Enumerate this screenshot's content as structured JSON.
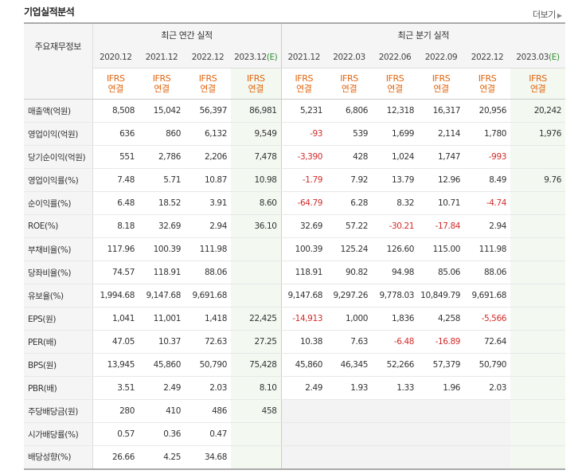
{
  "title": "기업실적분석",
  "more": "더보기",
  "header": {
    "corner": "주요재무정보",
    "annual_label": "최근 연간 실적",
    "quarter_label": "최근 분기 실적",
    "periods": [
      "2020.12",
      "2021.12",
      "2022.12",
      "2023.12(E)",
      "2021.12",
      "2022.03",
      "2022.06",
      "2022.09",
      "2022.12",
      "2023.03(E)"
    ],
    "basis_top": "IFRS",
    "basis_bottom": "연결"
  },
  "rows": [
    {
      "label": "매출액(억원)",
      "values": [
        "8,508",
        "15,042",
        "56,397",
        "86,981",
        "5,231",
        "6,806",
        "12,318",
        "16,317",
        "20,956",
        "20,242"
      ],
      "group_start": true
    },
    {
      "label": "영업이익(억원)",
      "values": [
        "636",
        "860",
        "6,132",
        "9,549",
        "-93",
        "539",
        "1,699",
        "2,114",
        "1,780",
        "1,976"
      ]
    },
    {
      "label": "당기순이익(억원)",
      "values": [
        "551",
        "2,786",
        "2,206",
        "7,478",
        "-3,390",
        "428",
        "1,024",
        "1,747",
        "-993",
        ""
      ]
    },
    {
      "label": "영업이익률(%)",
      "values": [
        "7.48",
        "5.71",
        "10.87",
        "10.98",
        "-1.79",
        "7.92",
        "13.79",
        "12.96",
        "8.49",
        "9.76"
      ],
      "group_start": true
    },
    {
      "label": "순이익률(%)",
      "values": [
        "6.48",
        "18.52",
        "3.91",
        "8.60",
        "-64.79",
        "6.28",
        "8.32",
        "10.71",
        "-4.74",
        ""
      ]
    },
    {
      "label": "ROE(%)",
      "values": [
        "8.18",
        "32.69",
        "2.94",
        "36.10",
        "32.69",
        "57.22",
        "-30.21",
        "-17.84",
        "2.94",
        ""
      ]
    },
    {
      "label": "부채비율(%)",
      "values": [
        "117.96",
        "100.39",
        "111.98",
        "",
        "100.39",
        "125.24",
        "126.60",
        "115.00",
        "111.98",
        ""
      ],
      "group_start": true
    },
    {
      "label": "당좌비율(%)",
      "values": [
        "74.57",
        "118.91",
        "88.06",
        "",
        "118.91",
        "90.82",
        "94.98",
        "85.06",
        "88.06",
        ""
      ]
    },
    {
      "label": "유보율(%)",
      "values": [
        "1,994.68",
        "9,147.68",
        "9,691.68",
        "",
        "9,147.68",
        "9,297.26",
        "9,778.03",
        "10,849.79",
        "9,691.68",
        ""
      ]
    },
    {
      "label": "EPS(원)",
      "values": [
        "1,041",
        "11,001",
        "1,418",
        "22,425",
        "-14,913",
        "1,000",
        "1,836",
        "4,258",
        "-5,566",
        ""
      ],
      "group_start": true
    },
    {
      "label": "PER(배)",
      "values": [
        "47.05",
        "10.37",
        "72.63",
        "27.25",
        "10.38",
        "7.63",
        "-6.48",
        "-16.89",
        "72.64",
        ""
      ]
    },
    {
      "label": "BPS(원)",
      "values": [
        "13,945",
        "45,860",
        "50,790",
        "75,428",
        "45,860",
        "46,345",
        "52,266",
        "57,379",
        "50,790",
        ""
      ]
    },
    {
      "label": "PBR(배)",
      "values": [
        "3.51",
        "2.49",
        "2.03",
        "8.10",
        "2.49",
        "1.93",
        "1.33",
        "1.96",
        "2.03",
        ""
      ]
    },
    {
      "label": "주당배당금(원)",
      "values": [
        "280",
        "410",
        "486",
        "458",
        "",
        "",
        "",
        "",
        "",
        ""
      ],
      "group_start": true
    },
    {
      "label": "시가배당률(%)",
      "values": [
        "0.57",
        "0.36",
        "0.47",
        "",
        "",
        "",
        "",
        "",
        "",
        ""
      ]
    },
    {
      "label": "배당성향(%)",
      "values": [
        "26.66",
        "4.25",
        "34.68",
        "",
        "",
        "",
        "",
        "",
        "",
        ""
      ]
    }
  ],
  "colors": {
    "accent": "#e0650f",
    "negative": "#d32a2a",
    "estimate": "#2f8f2f",
    "estimate_bg": "#f3f8f1"
  }
}
